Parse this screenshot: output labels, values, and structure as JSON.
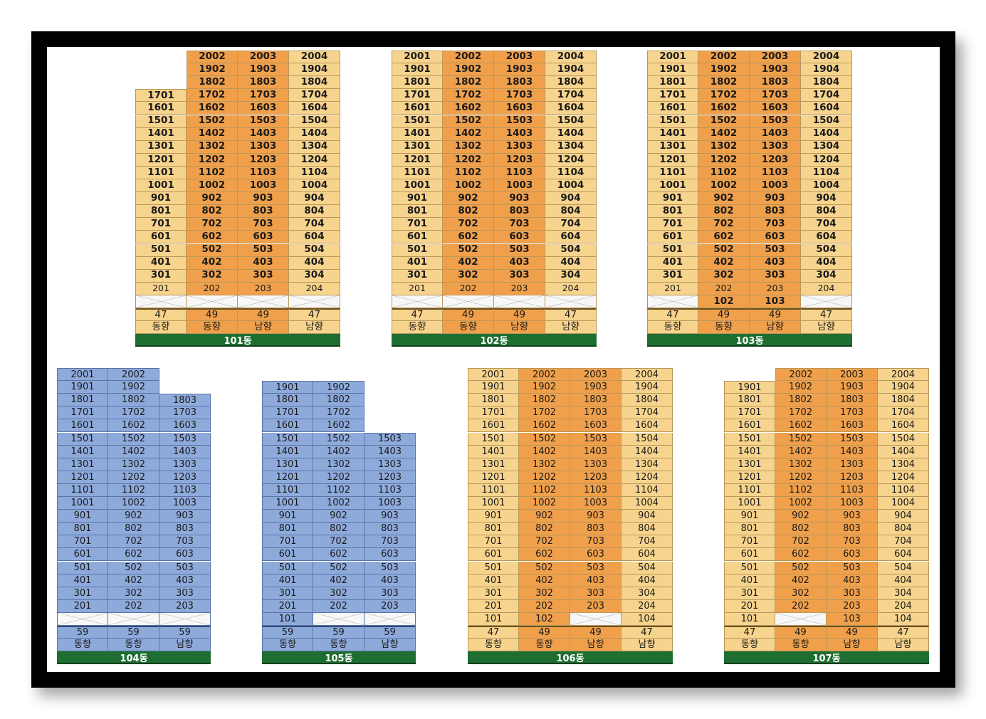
{
  "colors": {
    "light_orange": "#f7d48d",
    "dark_orange": "#f0a04b",
    "blue": "#8eaadb",
    "cross_cell": "#f7f7f7",
    "label_bar": "#1e6e32"
  },
  "buildings": [
    {
      "name": "101동",
      "style": "orange",
      "bold": true,
      "columns": [
        {
          "line": "01",
          "top_floor": 17,
          "min_floor": 2,
          "blank": [
            1
          ],
          "area": "47",
          "facing": "동향"
        },
        {
          "line": "02",
          "top_floor": 20,
          "min_floor": 2,
          "blank": [
            1
          ],
          "area": "49",
          "facing": "동향"
        },
        {
          "line": "03",
          "top_floor": 20,
          "min_floor": 2,
          "blank": [
            1
          ],
          "area": "49",
          "facing": "남향"
        },
        {
          "line": "04",
          "top_floor": 20,
          "min_floor": 2,
          "blank": [
            1
          ],
          "area": "47",
          "facing": "남향"
        }
      ]
    },
    {
      "name": "102동",
      "style": "orange",
      "bold": true,
      "columns": [
        {
          "line": "01",
          "top_floor": 20,
          "min_floor": 2,
          "blank": [
            1
          ],
          "area": "47",
          "facing": "동향"
        },
        {
          "line": "02",
          "top_floor": 20,
          "min_floor": 2,
          "blank": [
            1
          ],
          "area": "49",
          "facing": "동향"
        },
        {
          "line": "03",
          "top_floor": 20,
          "min_floor": 2,
          "blank": [
            1
          ],
          "area": "49",
          "facing": "남향"
        },
        {
          "line": "04",
          "top_floor": 20,
          "min_floor": 2,
          "blank": [
            1
          ],
          "area": "47",
          "facing": "남향"
        }
      ]
    },
    {
      "name": "103동",
      "style": "orange",
      "bold": true,
      "columns": [
        {
          "line": "01",
          "top_floor": 20,
          "min_floor": 2,
          "blank": [
            1
          ],
          "area": "47",
          "facing": "동향"
        },
        {
          "line": "02",
          "top_floor": 20,
          "min_floor": 1,
          "blank": [],
          "area": "49",
          "facing": "동향"
        },
        {
          "line": "03",
          "top_floor": 20,
          "min_floor": 1,
          "blank": [],
          "area": "49",
          "facing": "남향"
        },
        {
          "line": "04",
          "top_floor": 20,
          "min_floor": 2,
          "blank": [
            1
          ],
          "area": "47",
          "facing": "남향"
        }
      ]
    },
    {
      "name": "104동",
      "style": "blue",
      "bold": false,
      "columns": [
        {
          "line": "01",
          "top_floor": 20,
          "min_floor": 2,
          "blank": [
            1
          ],
          "area": "59",
          "facing": "동향"
        },
        {
          "line": "02",
          "top_floor": 20,
          "min_floor": 2,
          "blank": [
            1
          ],
          "area": "59",
          "facing": "동향"
        },
        {
          "line": "03",
          "top_floor": 18,
          "min_floor": 2,
          "blank": [
            1
          ],
          "area": "59",
          "facing": "남향"
        }
      ]
    },
    {
      "name": "105동",
      "style": "blue",
      "bold": false,
      "columns": [
        {
          "line": "01",
          "top_floor": 19,
          "min_floor": 1,
          "blank": [],
          "area": "59",
          "facing": "동향"
        },
        {
          "line": "02",
          "top_floor": 19,
          "min_floor": 2,
          "blank": [
            1
          ],
          "area": "59",
          "facing": "동향"
        },
        {
          "line": "03",
          "top_floor": 15,
          "min_floor": 2,
          "blank": [
            1
          ],
          "area": "59",
          "facing": "남향"
        }
      ]
    },
    {
      "name": "106동",
      "style": "orange",
      "bold": false,
      "columns": [
        {
          "line": "01",
          "top_floor": 20,
          "min_floor": 1,
          "blank": [],
          "area": "47",
          "facing": "동향"
        },
        {
          "line": "02",
          "top_floor": 20,
          "min_floor": 1,
          "blank": [],
          "area": "49",
          "facing": "동향"
        },
        {
          "line": "03",
          "top_floor": 20,
          "min_floor": 2,
          "blank": [
            1
          ],
          "area": "49",
          "facing": "남향"
        },
        {
          "line": "04",
          "top_floor": 20,
          "min_floor": 1,
          "blank": [],
          "area": "47",
          "facing": "남향"
        }
      ]
    },
    {
      "name": "107동",
      "style": "orange",
      "bold": false,
      "columns": [
        {
          "line": "01",
          "top_floor": 19,
          "min_floor": 1,
          "blank": [],
          "area": "47",
          "facing": "동향"
        },
        {
          "line": "02",
          "top_floor": 20,
          "min_floor": 2,
          "blank": [
            1
          ],
          "area": "49",
          "facing": "동향"
        },
        {
          "line": "03",
          "top_floor": 20,
          "min_floor": 1,
          "blank": [],
          "area": "49",
          "facing": "남향"
        },
        {
          "line": "04",
          "top_floor": 20,
          "min_floor": 1,
          "blank": [],
          "area": "47",
          "facing": "남향"
        }
      ]
    }
  ]
}
